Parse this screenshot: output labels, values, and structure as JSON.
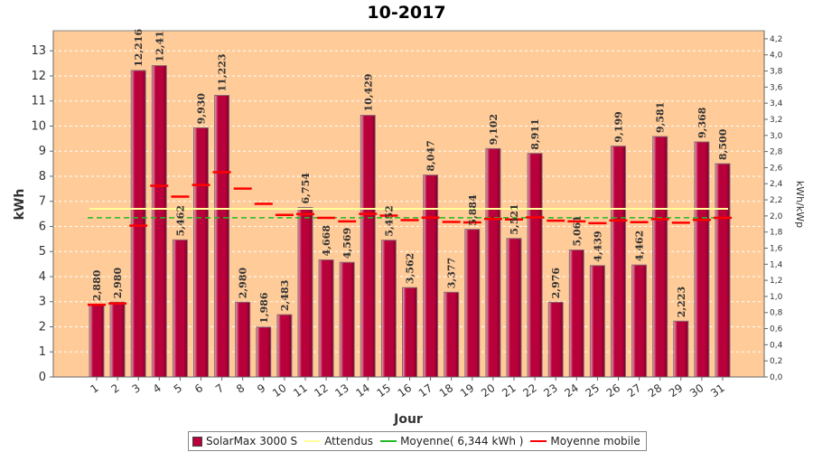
{
  "chart_data": {
    "type": "bar",
    "title": "10-2017",
    "xlabel": "Jour",
    "ylabel": "kWh",
    "y2label": "kWh/kWp",
    "ylim": [
      0,
      13.8
    ],
    "y2lim": [
      0,
      4.3
    ],
    "yticks": [
      "0",
      "1",
      "2",
      "3",
      "4",
      "5",
      "6",
      "7",
      "8",
      "9",
      "10",
      "11",
      "12",
      "13"
    ],
    "y2ticks": [
      "0,0",
      "0,2",
      "0,4",
      "0,6",
      "0,8",
      "1,0",
      "1,2",
      "1,4",
      "1,6",
      "1,8",
      "2,0",
      "2,2",
      "2,4",
      "2,6",
      "2,8",
      "3,0",
      "3,2",
      "3,4",
      "3,6",
      "3,8",
      "4,0",
      "4,2"
    ],
    "categories": [
      "1",
      "2",
      "3",
      "4",
      "5",
      "6",
      "7",
      "8",
      "9",
      "10",
      "11",
      "12",
      "13",
      "14",
      "15",
      "16",
      "17",
      "18",
      "19",
      "20",
      "21",
      "22",
      "23",
      "24",
      "25",
      "26",
      "27",
      "28",
      "29",
      "30",
      "31"
    ],
    "series": [
      {
        "name": "SolarMax 3000 S",
        "values": [
          2.88,
          2.98,
          12.216,
          12.41,
          5.462,
          9.93,
          11.223,
          2.98,
          1.986,
          2.483,
          6.754,
          4.668,
          4.569,
          10.429,
          5.452,
          3.562,
          8.047,
          3.377,
          5.884,
          9.102,
          5.521,
          8.911,
          2.976,
          5.061,
          4.439,
          9.199,
          4.462,
          9.581,
          2.223,
          9.368,
          8.5
        ],
        "labels": [
          "2,880",
          "2,980",
          "12,216",
          "12,41",
          "5,462",
          "9,930",
          "11,223",
          "2,980",
          "1,986",
          "2,483",
          "6,754",
          "4,668",
          "4,569",
          "10,429",
          "5,452",
          "3,562",
          "8,047",
          "3,377",
          "5,884",
          "9,102",
          "5,521",
          "8,911",
          "2,976",
          "5,061",
          "4,439",
          "9,199",
          "4,462",
          "9,581",
          "2,223",
          "9,368",
          "8,500"
        ]
      },
      {
        "name": "Attendus",
        "values": [
          6.7,
          6.7,
          6.7,
          6.7,
          6.7,
          6.7,
          6.7,
          6.7,
          6.7,
          6.7,
          6.7,
          6.7,
          6.7,
          6.7,
          6.7,
          6.7,
          6.7,
          6.7,
          6.7,
          6.7,
          6.7,
          6.7,
          6.7,
          6.7,
          6.7,
          6.7,
          6.7,
          6.7,
          6.7,
          6.7,
          6.7
        ]
      },
      {
        "name": "Moyenne( 6,344 kWh )",
        "value": 6.344
      },
      {
        "name": "Moyenne mobile",
        "values": [
          2.88,
          2.93,
          6.03,
          7.62,
          7.19,
          7.65,
          8.16,
          7.51,
          6.9,
          6.46,
          6.49,
          6.34,
          6.2,
          6.5,
          6.43,
          6.25,
          6.35,
          6.18,
          6.16,
          6.3,
          6.28,
          6.36,
          6.23,
          6.2,
          6.13,
          6.24,
          6.17,
          6.29,
          6.15,
          6.26,
          6.34
        ]
      }
    ],
    "colors": {
      "background": "#ffcc99",
      "bar": "#b8003a",
      "attendus": "#ffff99",
      "moyenne": "#22bb22",
      "mobile": "#ff0000",
      "grid": "#ffffff"
    },
    "grid": true,
    "legend": "bottom-center"
  }
}
